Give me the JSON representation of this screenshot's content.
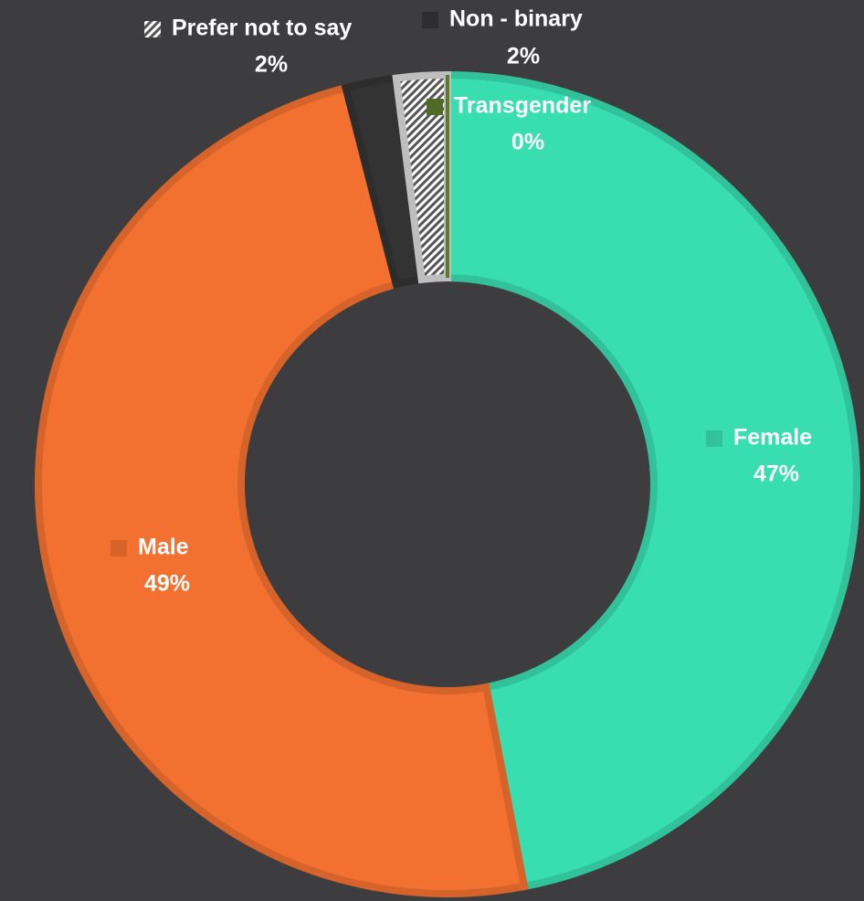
{
  "chart_data": {
    "type": "donut",
    "categories": [
      "Female",
      "Male",
      "Non - binary",
      "Prefer not to say",
      "Transgender"
    ],
    "values": [
      47,
      49,
      2,
      2,
      0
    ],
    "value_labels": [
      "47%",
      "49%",
      "2%",
      "2%",
      "0%"
    ],
    "colors": [
      "#38ddb0",
      "#f27030",
      "#333333",
      "#d8d8d8",
      "#5b7a2c"
    ],
    "patterns": [
      null,
      null,
      null,
      "hatch",
      null
    ]
  }
}
